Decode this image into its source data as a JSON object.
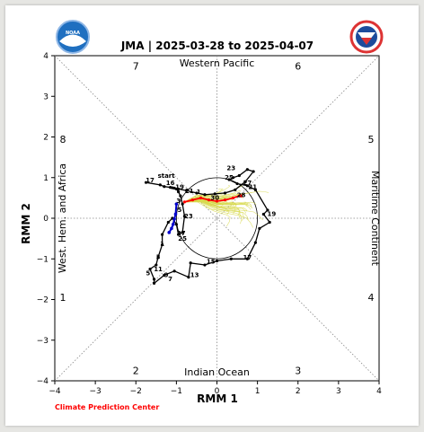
{
  "title": "JMA | 2025-03-28 to 2025-04-07",
  "credit": "Climate Prediction Center",
  "logos": [
    {
      "name": "noaa-logo",
      "text": "NOAA",
      "color": "#1f6fc0"
    },
    {
      "name": "nws-logo",
      "text": "NATIONAL WEATHER SERVICE",
      "color": "#1c4c9c"
    }
  ],
  "colors": {
    "observed": "#000000",
    "forecast_mean": "#ff0000",
    "ensemble": "#d7d84a",
    "recent": "#0000cc",
    "credit": "#ff0000"
  },
  "chart_data": {
    "type": "line",
    "xlabel": "RMM 1",
    "ylabel": "RMM 2",
    "xlim": [
      -4,
      4
    ],
    "ylim": [
      -4,
      4
    ],
    "xticks": [
      "−4",
      "−3",
      "−2",
      "−1",
      "0",
      "1",
      "2",
      "3",
      "4"
    ],
    "yticks": [
      "−4",
      "−3",
      "−2",
      "−1",
      "0",
      "1",
      "2",
      "3",
      "4"
    ],
    "phase_labels": [
      {
        "text": "1",
        "x": -3.8,
        "y": -1.95
      },
      {
        "text": "2",
        "x": -2.0,
        "y": -3.75
      },
      {
        "text": "3",
        "x": 2.0,
        "y": -3.75
      },
      {
        "text": "4",
        "x": 3.8,
        "y": -1.95
      },
      {
        "text": "5",
        "x": 3.8,
        "y": 1.95
      },
      {
        "text": "6",
        "x": 2.0,
        "y": 3.75
      },
      {
        "text": "7",
        "x": -2.0,
        "y": 3.75
      },
      {
        "text": "8",
        "x": -3.8,
        "y": 1.95
      }
    ],
    "region_labels": [
      {
        "text": "Western Pacific",
        "side": "top"
      },
      {
        "text": "Indian Ocean",
        "side": "bottom"
      },
      {
        "text": "West. Hem. and Africa",
        "side": "left"
      },
      {
        "text": "Maritime Continent",
        "side": "right"
      }
    ],
    "observed_track": {
      "x": [
        -1.75,
        -1.4,
        -1.3,
        -1.15,
        -0.95,
        -0.75,
        -0.5,
        -0.3,
        -0.05,
        0.2,
        0.45,
        0.7,
        0.9,
        0.75,
        0.55,
        0.4,
        0.3,
        0.5,
        0.75,
        0.95,
        1.25,
        1.15,
        1.3,
        1.05,
        0.95,
        0.75,
        0.35,
        0.0,
        -0.3,
        -0.65,
        -0.7,
        -1.05,
        -1.3,
        -1.55,
        -1.55,
        -1.65,
        -1.5,
        -1.45,
        -1.35,
        -1.35,
        -1.2,
        -1.1,
        -1.0,
        -0.95,
        -0.85,
        -0.8,
        -0.85,
        -0.9,
        -0.95,
        -1.0,
        -1.05,
        -1.1
      ],
      "y": [
        0.88,
        0.82,
        0.78,
        0.76,
        0.72,
        0.68,
        0.62,
        0.58,
        0.6,
        0.62,
        0.7,
        0.9,
        1.15,
        1.2,
        1.05,
        1.0,
        0.95,
        0.85,
        0.8,
        0.7,
        0.2,
        0.1,
        -0.1,
        -0.25,
        -0.6,
        -1.0,
        -1.0,
        -1.05,
        -1.15,
        -1.1,
        -1.45,
        -1.3,
        -1.4,
        -1.6,
        -1.5,
        -1.25,
        -1.15,
        -0.95,
        -0.65,
        -0.4,
        -0.1,
        0.0,
        -0.15,
        -0.4,
        -0.35,
        0.05,
        0.35,
        0.55,
        0.65,
        0.72,
        0.74,
        0.75
      ]
    },
    "recent_track": {
      "x": [
        -1.0,
        -1.02,
        -1.05,
        -1.08,
        -1.12,
        -1.18
      ],
      "y": [
        0.35,
        0.1,
        -0.02,
        -0.15,
        -0.25,
        -0.35
      ]
    },
    "forecast_mean_track": {
      "x": [
        -0.8,
        -0.6,
        -0.4,
        -0.2,
        0.0,
        0.2,
        0.4,
        0.55,
        0.6,
        0.6
      ],
      "y": [
        0.4,
        0.45,
        0.5,
        0.45,
        0.42,
        0.45,
        0.5,
        0.55,
        0.55,
        0.55
      ]
    },
    "observed_labels": [
      {
        "text": "start",
        "x": -1.25,
        "y": 1.0
      },
      {
        "text": "17",
        "x": -1.65,
        "y": 0.88
      },
      {
        "text": "16",
        "x": -1.15,
        "y": 0.82
      },
      {
        "text": "19",
        "x": -0.92,
        "y": 0.72
      },
      {
        "text": "21",
        "x": -0.68,
        "y": 0.62
      },
      {
        "text": "1",
        "x": -0.45,
        "y": 0.6
      },
      {
        "text": "23",
        "x": 0.35,
        "y": 1.18
      },
      {
        "text": "25",
        "x": 0.3,
        "y": 0.95
      },
      {
        "text": "27",
        "x": 0.75,
        "y": 0.82
      },
      {
        "text": "21",
        "x": 0.88,
        "y": 0.72
      },
      {
        "text": "28",
        "x": 0.6,
        "y": 0.52
      },
      {
        "text": "30",
        "x": -0.05,
        "y": 0.45
      },
      {
        "text": "19",
        "x": 1.35,
        "y": 0.05
      },
      {
        "text": "17",
        "x": 0.75,
        "y": -1.02
      },
      {
        "text": "15",
        "x": -0.15,
        "y": -1.12
      },
      {
        "text": "13",
        "x": -0.55,
        "y": -1.45
      },
      {
        "text": "11",
        "x": -1.45,
        "y": -1.3
      },
      {
        "text": "9",
        "x": -1.25,
        "y": -1.45
      },
      {
        "text": "7",
        "x": -1.15,
        "y": -1.55
      },
      {
        "text": "5",
        "x": -1.7,
        "y": -1.4
      },
      {
        "text": "3",
        "x": -1.45,
        "y": -1.0
      },
      {
        "text": "1",
        "x": -1.35,
        "y": -0.68
      },
      {
        "text": "23",
        "x": -0.7,
        "y": 0.0
      },
      {
        "text": "25",
        "x": -0.85,
        "y": -0.55
      },
      {
        "text": "27",
        "x": -0.88,
        "y": -0.42
      },
      {
        "text": "3",
        "x": -0.95,
        "y": 0.38
      },
      {
        "text": "5",
        "x": -0.92,
        "y": 0.16
      }
    ]
  }
}
